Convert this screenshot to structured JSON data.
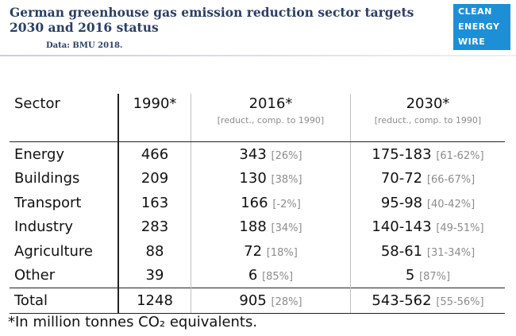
{
  "header": {
    "title": "German greenhouse gas emission reduction sector targets 2030 and 2016 status",
    "source": "Data: BMU 2018.",
    "logo_lines": [
      "CLEAN",
      "ENERGY",
      "WIRE"
    ],
    "logo_color": "#1d8fd6",
    "title_color": "#2a3f63"
  },
  "chart_data": {
    "type": "table",
    "columns": [
      {
        "label": "Sector",
        "sub": ""
      },
      {
        "label": "1990*",
        "sub": ""
      },
      {
        "label": "2016*",
        "sub": "[reduct., comp. to 1990]"
      },
      {
        "label": "2030*",
        "sub": "[reduct., comp. to 1990]"
      }
    ],
    "rows": [
      {
        "sector": "Energy",
        "y1990": "466",
        "y2016": "343",
        "red2016": "[26%]",
        "y2030": "175-183",
        "red2030": "[61-62%]"
      },
      {
        "sector": "Buildings",
        "y1990": "209",
        "y2016": "130",
        "red2016": "[38%]",
        "y2030": "70-72",
        "red2030": "[66-67%]"
      },
      {
        "sector": "Transport",
        "y1990": "163",
        "y2016": "166",
        "red2016": "[-2%]",
        "y2030": "95-98",
        "red2030": "[40-42%]"
      },
      {
        "sector": "Industry",
        "y1990": "283",
        "y2016": "188",
        "red2016": "[34%]",
        "y2030": "140-143",
        "red2030": "[49-51%]"
      },
      {
        "sector": "Agriculture",
        "y1990": "88",
        "y2016": "72",
        "red2016": "[18%]",
        "y2030": "58-61",
        "red2030": "[31-34%]"
      },
      {
        "sector": "Other",
        "y1990": "39",
        "y2016": "6",
        "red2016": "[85%]",
        "y2030": "5",
        "red2030": "[87%]"
      }
    ],
    "total": {
      "sector": "Total",
      "y1990": "1248",
      "y2016": "905",
      "red2016": "[28%]",
      "y2030": "543-562",
      "red2030": "[55-56%]"
    },
    "footnote": "*In million tonnes CO₂ equivalents."
  }
}
